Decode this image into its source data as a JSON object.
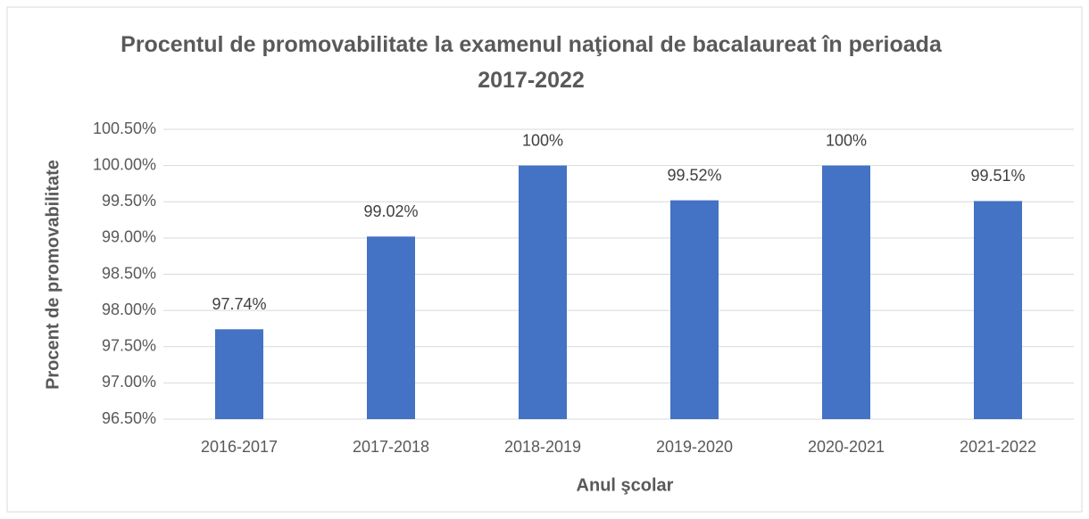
{
  "chart_data": {
    "type": "bar",
    "title": "Procentul de promovabilitate la examenul naţional de bacalaureat în perioada 2017-2022",
    "x_label": "Anul şcolar",
    "y_label": "Procent de promovabilitate",
    "categories": [
      "2016-2017",
      "2017-2018",
      "2018-2019",
      "2019-2020",
      "2020-2021",
      "2021-2022"
    ],
    "values": [
      97.74,
      99.02,
      100,
      99.52,
      100,
      99.51
    ],
    "value_labels": [
      "97.74%",
      "99.02%",
      "100%",
      "99.52%",
      "100%",
      "99.51%"
    ],
    "color": "#4472c4",
    "ylim": [
      96.5,
      100.5
    ],
    "yticks": [
      {
        "value": 96.5,
        "label": "96.50%"
      },
      {
        "value": 97,
        "label": "97.00%"
      },
      {
        "value": 97.5,
        "label": "97.50%"
      },
      {
        "value": 98,
        "label": "98.00%"
      },
      {
        "value": 98.5,
        "label": "98.50%"
      },
      {
        "value": 99,
        "label": "99.00%"
      },
      {
        "value": 99.5,
        "label": "99.50%"
      },
      {
        "value": 100,
        "label": "100.00%"
      },
      {
        "value": 100.5,
        "label": "100.50%"
      }
    ],
    "grid": true
  }
}
